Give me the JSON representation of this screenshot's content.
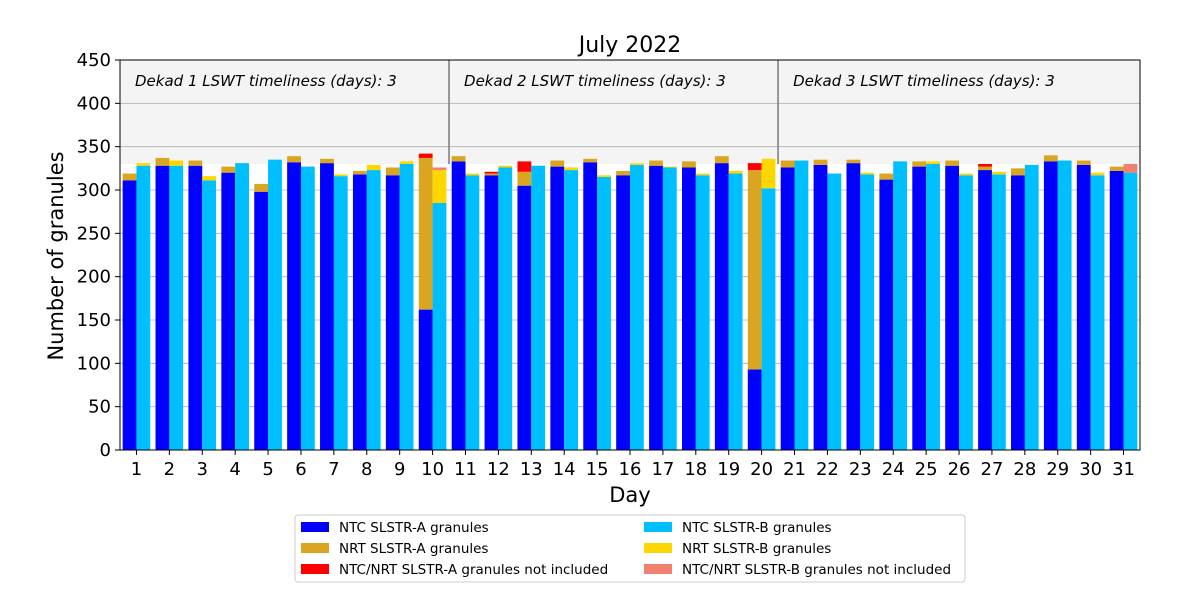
{
  "chart_data": {
    "type": "bar",
    "title": "July 2022",
    "xlabel": "Day",
    "ylabel": "Number of granules",
    "ylim": [
      0,
      450
    ],
    "yticks": [
      0,
      50,
      100,
      150,
      200,
      250,
      300,
      350,
      400,
      450
    ],
    "categories": [
      1,
      2,
      3,
      4,
      5,
      6,
      7,
      8,
      9,
      10,
      11,
      12,
      13,
      14,
      15,
      16,
      17,
      18,
      19,
      20,
      21,
      22,
      23,
      24,
      25,
      26,
      27,
      28,
      29,
      30,
      31
    ],
    "grid": true,
    "legend_position": "bottom",
    "dekad_separators_after_day": [
      10,
      20
    ],
    "dekad_band_range": [
      330,
      450
    ],
    "dekad_labels": [
      "Dekad 1 LSWT timeliness (days): 3",
      "Dekad 2 LSWT timeliness (days): 3",
      "Dekad 3 LSWT timeliness (days): 3"
    ],
    "colors": {
      "ntc_a": "#0000ff",
      "nrt_a": "#daa520",
      "excl_a": "#ff0000",
      "ntc_b": "#00bfff",
      "nrt_b": "#ffd700",
      "excl_b": "#f08070",
      "band": "#f4f4f4",
      "separator": "#808080",
      "grid": "#b0b0b0"
    },
    "series": [
      {
        "name": "NTC SLSTR-A granules",
        "key": "ntc_a",
        "bar": "A",
        "values": [
          311,
          328,
          328,
          320,
          298,
          332,
          331,
          318,
          317,
          162,
          333,
          317,
          305,
          327,
          332,
          317,
          328,
          326,
          331,
          93,
          326,
          329,
          331,
          312,
          327,
          328,
          323,
          317,
          333,
          329,
          322
        ]
      },
      {
        "name": "NRT SLSTR-A granules",
        "key": "nrt_a",
        "bar": "A",
        "values": [
          8,
          9,
          6,
          7,
          9,
          7,
          5,
          4,
          9,
          175,
          6,
          2,
          16,
          7,
          4,
          5,
          6,
          7,
          8,
          230,
          8,
          6,
          4,
          7,
          6,
          6,
          4,
          8,
          7,
          5,
          5
        ]
      },
      {
        "name": "NTC/NRT SLSTR-A granules not included",
        "key": "excl_a",
        "bar": "A",
        "values": [
          0,
          0,
          0,
          0,
          0,
          0,
          0,
          0,
          0,
          5,
          0,
          2,
          12,
          0,
          0,
          0,
          0,
          0,
          0,
          8,
          0,
          0,
          0,
          0,
          0,
          0,
          3,
          0,
          0,
          0,
          0
        ]
      },
      {
        "name": "NTC SLSTR-B granules",
        "key": "ntc_b",
        "bar": "B",
        "values": [
          328,
          328,
          311,
          331,
          335,
          327,
          316,
          323,
          330,
          285,
          317,
          326,
          328,
          323,
          315,
          329,
          326,
          317,
          319,
          302,
          334,
          319,
          318,
          333,
          330,
          317,
          318,
          329,
          334,
          317,
          320
        ]
      },
      {
        "name": "NRT SLSTR-B granules",
        "key": "nrt_b",
        "bar": "B",
        "values": [
          3,
          6,
          5,
          0,
          0,
          0,
          2,
          6,
          3,
          38,
          2,
          2,
          0,
          3,
          2,
          2,
          1,
          2,
          3,
          34,
          0,
          0,
          2,
          0,
          3,
          2,
          3,
          0,
          0,
          3,
          0
        ]
      },
      {
        "name": "NTC/NRT SLSTR-B granules not included",
        "key": "excl_b",
        "bar": "B",
        "values": [
          0,
          0,
          0,
          0,
          0,
          0,
          0,
          0,
          0,
          3,
          0,
          0,
          0,
          0,
          0,
          0,
          0,
          0,
          0,
          0,
          0,
          0,
          0,
          0,
          0,
          0,
          0,
          0,
          0,
          0,
          10
        ]
      }
    ],
    "legend_order": [
      "ntc_a",
      "ntc_b",
      "nrt_a",
      "nrt_b",
      "excl_a",
      "excl_b"
    ]
  }
}
